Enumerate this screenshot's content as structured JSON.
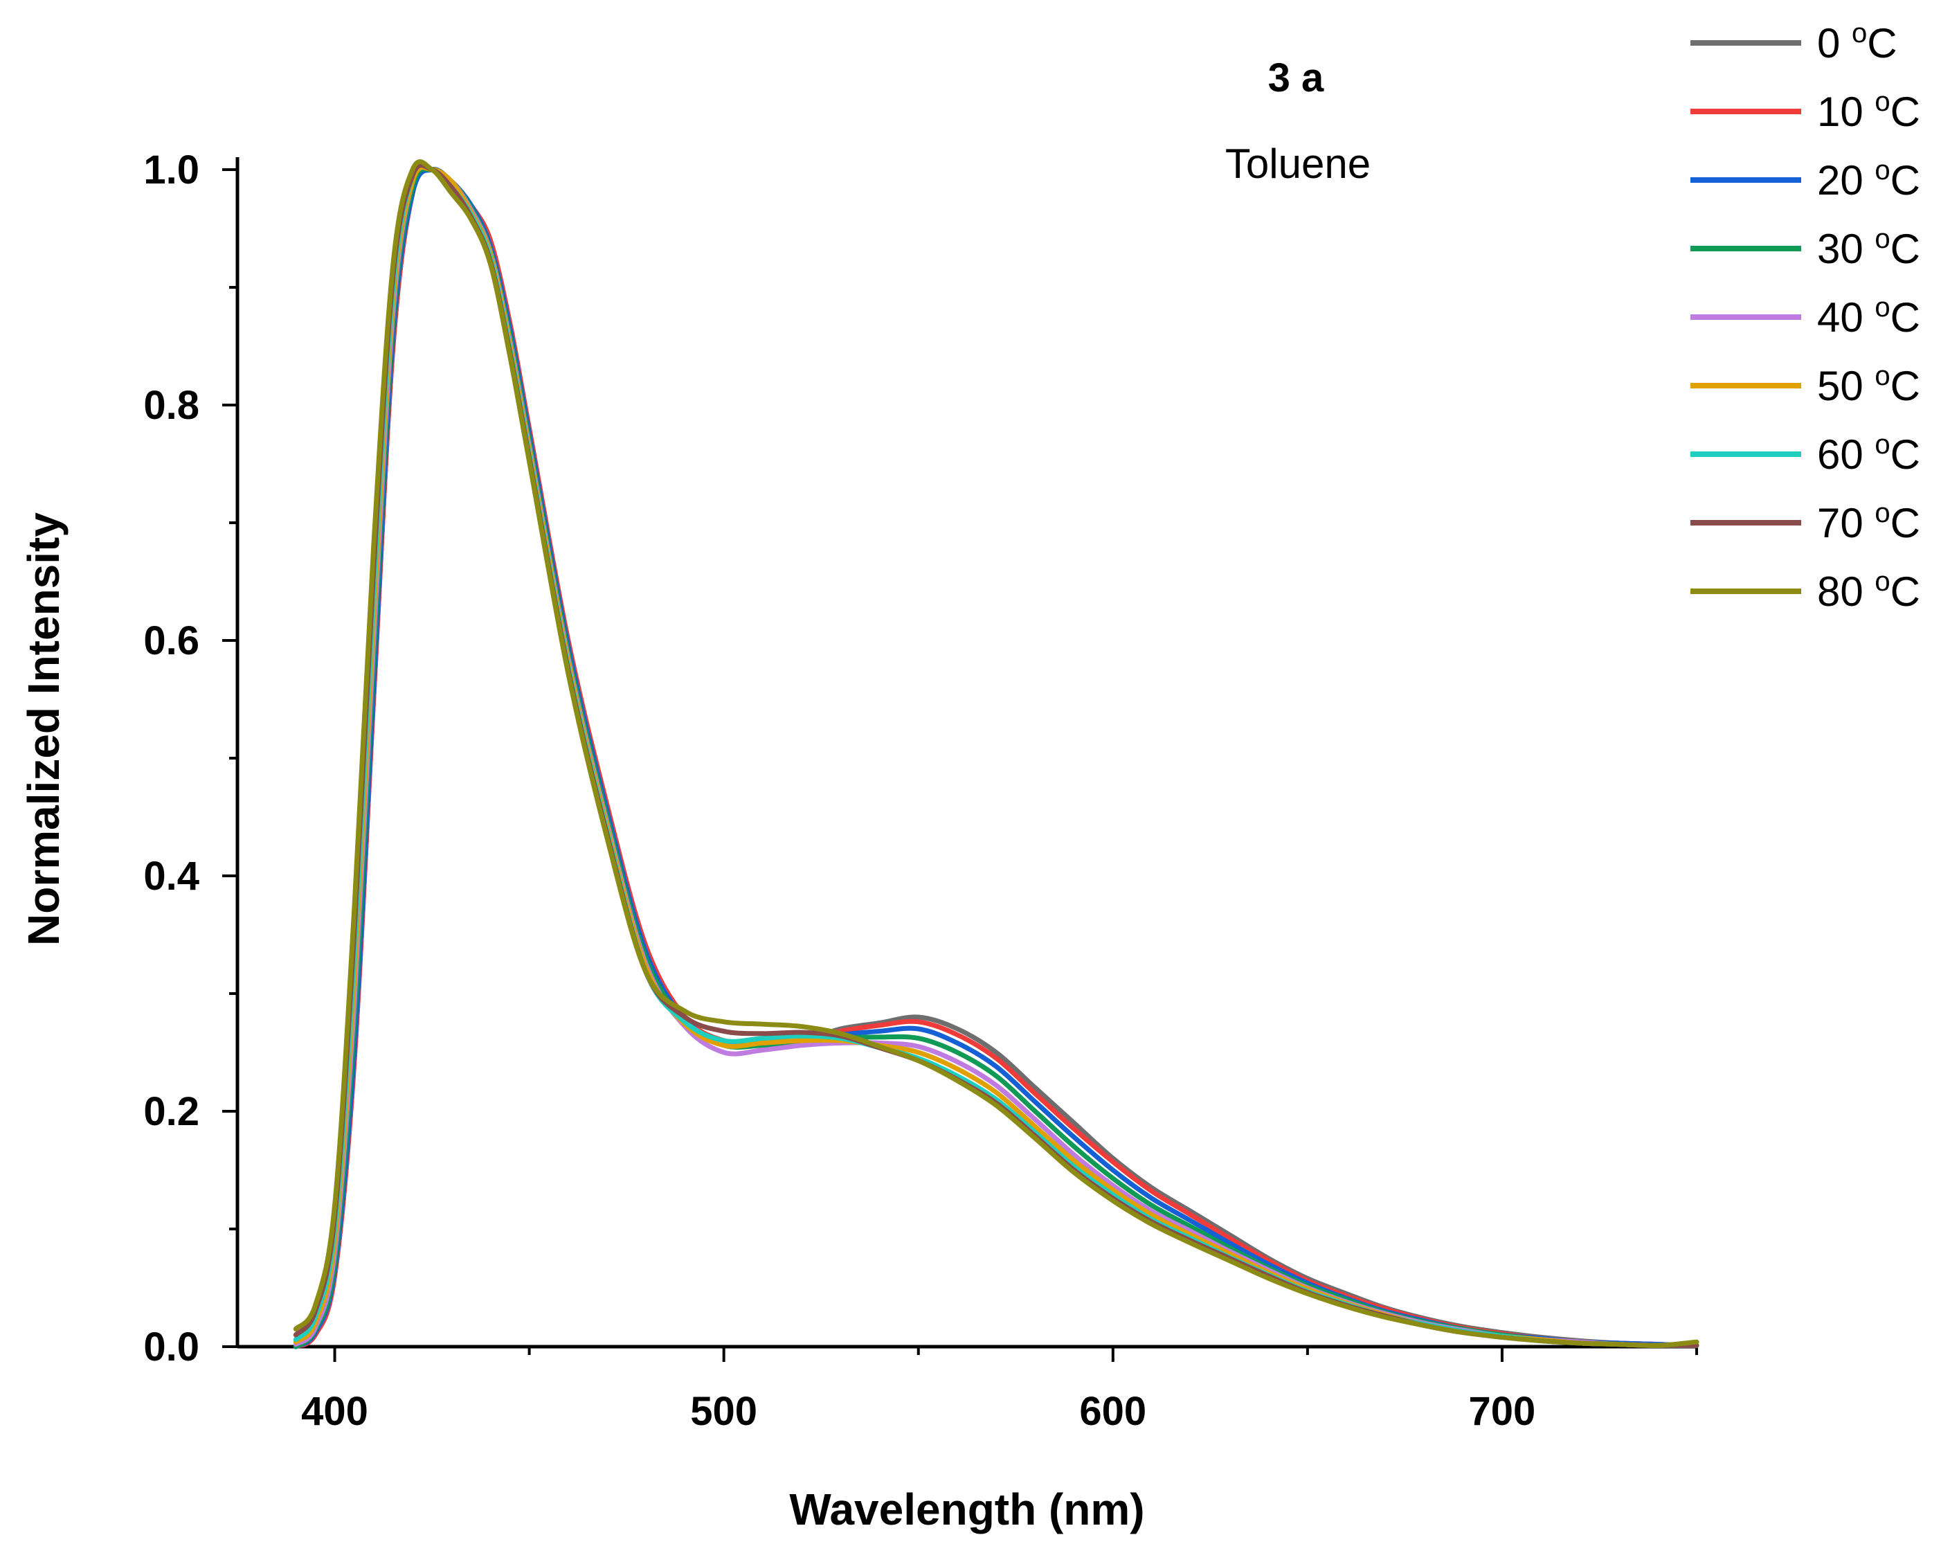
{
  "chart_data": {
    "type": "line",
    "title": "3 a",
    "subtitle": "Toluene",
    "xlabel": "Wavelength (nm)",
    "ylabel": "Normalized Intensity",
    "xlim": [
      375,
      750
    ],
    "ylim": [
      0,
      1.0
    ],
    "xticks": [
      400,
      500,
      600,
      700
    ],
    "xtick_labels": [
      "400",
      "500",
      "600",
      "700"
    ],
    "xminor": [
      450,
      550,
      650,
      750
    ],
    "yticks": [
      0.0,
      0.2,
      0.4,
      0.6,
      0.8,
      1.0
    ],
    "ytick_labels": [
      "0.0",
      "0.2",
      "0.4",
      "0.6",
      "0.8",
      "1.0"
    ],
    "yminor": [
      0.1,
      0.3,
      0.5,
      0.7,
      0.9
    ],
    "legend_position": "top-right",
    "x": [
      390,
      395,
      400,
      405,
      410,
      415,
      420,
      425,
      430,
      435,
      440,
      445,
      450,
      460,
      470,
      480,
      490,
      500,
      510,
      520,
      530,
      540,
      550,
      560,
      570,
      580,
      590,
      600,
      610,
      620,
      630,
      640,
      650,
      660,
      670,
      680,
      690,
      700,
      710,
      720,
      730,
      740,
      750
    ],
    "series": [
      {
        "name": "0 °C",
        "label_num": "0",
        "color": "#6e6e6e",
        "values": [
          0.0,
          0.01,
          0.06,
          0.24,
          0.55,
          0.85,
          0.98,
          1.0,
          0.99,
          0.97,
          0.94,
          0.87,
          0.78,
          0.6,
          0.46,
          0.34,
          0.28,
          0.26,
          0.26,
          0.26,
          0.27,
          0.275,
          0.28,
          0.27,
          0.25,
          0.22,
          0.19,
          0.16,
          0.135,
          0.115,
          0.095,
          0.075,
          0.058,
          0.045,
          0.033,
          0.024,
          0.017,
          0.012,
          0.008,
          0.005,
          0.003,
          0.002,
          0.001
        ]
      },
      {
        "name": "10 °C",
        "label_num": "10",
        "color": "#f03b3b",
        "values": [
          0.0,
          0.01,
          0.06,
          0.24,
          0.55,
          0.85,
          0.98,
          1.0,
          0.99,
          0.97,
          0.94,
          0.87,
          0.78,
          0.6,
          0.46,
          0.34,
          0.28,
          0.26,
          0.26,
          0.26,
          0.268,
          0.273,
          0.276,
          0.265,
          0.245,
          0.215,
          0.185,
          0.157,
          0.132,
          0.112,
          0.092,
          0.073,
          0.056,
          0.043,
          0.032,
          0.023,
          0.016,
          0.011,
          0.007,
          0.004,
          0.003,
          0.002,
          0.001
        ]
      },
      {
        "name": "20 °C",
        "label_num": "20",
        "color": "#1560d4",
        "values": [
          0.0,
          0.012,
          0.065,
          0.25,
          0.56,
          0.86,
          0.98,
          1.0,
          0.99,
          0.97,
          0.935,
          0.865,
          0.775,
          0.595,
          0.455,
          0.335,
          0.278,
          0.258,
          0.258,
          0.26,
          0.265,
          0.268,
          0.27,
          0.258,
          0.238,
          0.208,
          0.178,
          0.15,
          0.126,
          0.107,
          0.088,
          0.07,
          0.054,
          0.041,
          0.03,
          0.022,
          0.015,
          0.01,
          0.007,
          0.004,
          0.003,
          0.002,
          0.001
        ]
      },
      {
        "name": "30 °C",
        "label_num": "30",
        "color": "#0f9a55",
        "values": [
          0.0,
          0.014,
          0.07,
          0.27,
          0.58,
          0.87,
          0.985,
          1.0,
          0.99,
          0.968,
          0.932,
          0.86,
          0.77,
          0.59,
          0.45,
          0.33,
          0.276,
          0.256,
          0.256,
          0.258,
          0.262,
          0.263,
          0.262,
          0.25,
          0.23,
          0.2,
          0.17,
          0.143,
          0.12,
          0.102,
          0.084,
          0.067,
          0.052,
          0.04,
          0.029,
          0.021,
          0.015,
          0.01,
          0.006,
          0.004,
          0.002,
          0.001,
          0.001
        ]
      },
      {
        "name": "40 °C",
        "label_num": "40",
        "color": "#bf7be0",
        "values": [
          0.002,
          0.016,
          0.08,
          0.29,
          0.6,
          0.88,
          0.99,
          1.0,
          0.99,
          0.966,
          0.93,
          0.855,
          0.765,
          0.585,
          0.445,
          0.325,
          0.272,
          0.25,
          0.252,
          0.256,
          0.258,
          0.258,
          0.255,
          0.242,
          0.222,
          0.193,
          0.163,
          0.137,
          0.115,
          0.098,
          0.081,
          0.065,
          0.05,
          0.038,
          0.028,
          0.02,
          0.014,
          0.009,
          0.006,
          0.004,
          0.002,
          0.001,
          0.001
        ]
      },
      {
        "name": "50 °C",
        "label_num": "50",
        "color": "#e0a000",
        "values": [
          0.004,
          0.02,
          0.09,
          0.31,
          0.62,
          0.89,
          0.99,
          1.0,
          0.99,
          0.964,
          0.928,
          0.852,
          0.762,
          0.582,
          0.442,
          0.322,
          0.274,
          0.256,
          0.258,
          0.26,
          0.26,
          0.256,
          0.25,
          0.236,
          0.216,
          0.187,
          0.158,
          0.133,
          0.112,
          0.095,
          0.079,
          0.063,
          0.049,
          0.037,
          0.027,
          0.019,
          0.013,
          0.009,
          0.006,
          0.003,
          0.002,
          0.001,
          0.001
        ]
      },
      {
        "name": "60 °C",
        "label_num": "60",
        "color": "#1ecfc0",
        "values": [
          0.006,
          0.025,
          0.1,
          0.33,
          0.64,
          0.9,
          0.995,
          1.0,
          0.985,
          0.962,
          0.925,
          0.848,
          0.758,
          0.578,
          0.438,
          0.318,
          0.276,
          0.26,
          0.262,
          0.264,
          0.262,
          0.254,
          0.245,
          0.23,
          0.21,
          0.182,
          0.153,
          0.129,
          0.108,
          0.092,
          0.076,
          0.061,
          0.047,
          0.036,
          0.026,
          0.019,
          0.013,
          0.009,
          0.005,
          0.003,
          0.002,
          0.001,
          0.001
        ]
      },
      {
        "name": "70 °C",
        "label_num": "70",
        "color": "#8a4b4b",
        "values": [
          0.01,
          0.03,
          0.11,
          0.35,
          0.66,
          0.91,
          0.995,
          1.0,
          0.985,
          0.96,
          0.922,
          0.845,
          0.755,
          0.575,
          0.435,
          0.318,
          0.28,
          0.268,
          0.266,
          0.267,
          0.264,
          0.254,
          0.243,
          0.227,
          0.207,
          0.179,
          0.15,
          0.126,
          0.106,
          0.09,
          0.075,
          0.06,
          0.046,
          0.035,
          0.026,
          0.018,
          0.012,
          0.008,
          0.005,
          0.003,
          0.002,
          0.001,
          0.001
        ]
      },
      {
        "name": "80 °C",
        "label_num": "80",
        "color": "#8c8c14",
        "values": [
          0.015,
          0.035,
          0.12,
          0.37,
          0.68,
          0.92,
          1.0,
          1.0,
          0.98,
          0.958,
          0.92,
          0.842,
          0.752,
          0.572,
          0.432,
          0.318,
          0.285,
          0.276,
          0.274,
          0.272,
          0.266,
          0.255,
          0.243,
          0.226,
          0.205,
          0.177,
          0.148,
          0.124,
          0.104,
          0.088,
          0.073,
          0.058,
          0.045,
          0.034,
          0.025,
          0.018,
          0.012,
          0.008,
          0.005,
          0.003,
          0.002,
          0.001,
          0.004
        ]
      }
    ]
  }
}
